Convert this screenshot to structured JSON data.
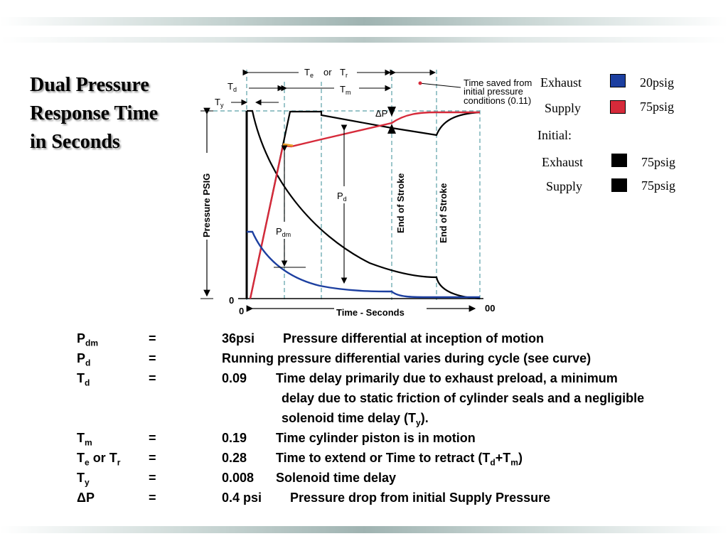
{
  "title_lines": [
    "Dual Pressure",
    "Response Time",
    "in Seconds"
  ],
  "diagram": {
    "y_axis_label": "Pressure PSIG",
    "x_axis_label": "Time - Seconds",
    "x_start": "0",
    "x_end": "00",
    "y_zero": "0",
    "marker_end_of_stroke_1": "End of Stroke",
    "marker_end_of_stroke_2": "End of Stroke",
    "te_label": "T",
    "te_sub": "e",
    "or_word": "or",
    "tr_label": "T",
    "tr_sub": "r",
    "td_label": "T",
    "td_sub": "d",
    "tm_label": "T",
    "tm_sub": "m",
    "ty_label": "T",
    "ty_sub": "y",
    "pdm_label": "P",
    "pdm_sub": "dm",
    "pd_label": "P",
    "pd_sub": "d",
    "dp_label": "ΔP",
    "time_saved_lines": [
      "Time saved from",
      "initial pressure",
      "conditions (0.11)"
    ],
    "colors": {
      "exhaust": "#1c3fa0",
      "supply": "#d62a3a",
      "initial": "#000000"
    }
  },
  "legend": {
    "exhaust_label": "Exhaust",
    "exhaust_value": "20psig",
    "supply_label": "Supply",
    "supply_value": "75psig",
    "initial_label": "Initial:",
    "initial_exhaust_label": "Exhaust",
    "initial_exhaust_value": "75psig",
    "initial_supply_label": "Supply",
    "initial_supply_value": "75psig"
  },
  "definitions": [
    {
      "sym": "P",
      "sub": "dm",
      "eq": "=",
      "val": "36psi",
      "desc": "Pressure differential at inception of motion"
    },
    {
      "sym": "P",
      "sub": "d",
      "eq": "=",
      "val": "",
      "desc": "Running pressure differential varies during cycle (see curve)"
    },
    {
      "sym": "T",
      "sub": "d",
      "eq": "=",
      "val": "0.09",
      "desc": "Time delay primarily due to exhaust preload, a minimum"
    },
    {
      "cont": "delay due to static friction of cylinder seals and a negligible"
    },
    {
      "cont_a": "solenoid time delay (T",
      "cont_sub": "y",
      "cont_b": ")."
    },
    {
      "sym": "T",
      "sub": "m",
      "eq": "=",
      "val": "0.19",
      "desc": "Time cylinder piston is in motion"
    },
    {
      "sym_a": "T",
      "sub_a": "e",
      "sym_mid": " or T",
      "sub_b": "r",
      "eq": "=",
      "val": "0.28",
      "desc_a": "Time to extend or Time to retract  (T",
      "desc_sub1": "d",
      "desc_mid": "+T",
      "desc_sub2": "m",
      "desc_b": ")"
    },
    {
      "sym": "T",
      "sub": "y",
      "eq": "=",
      "val": "0.008",
      "desc": "Solenoid time delay"
    },
    {
      "sym": "ΔP",
      "eq": "=",
      "val": "0.4 psi",
      "desc": "Pressure drop from initial Supply Pressure"
    }
  ]
}
